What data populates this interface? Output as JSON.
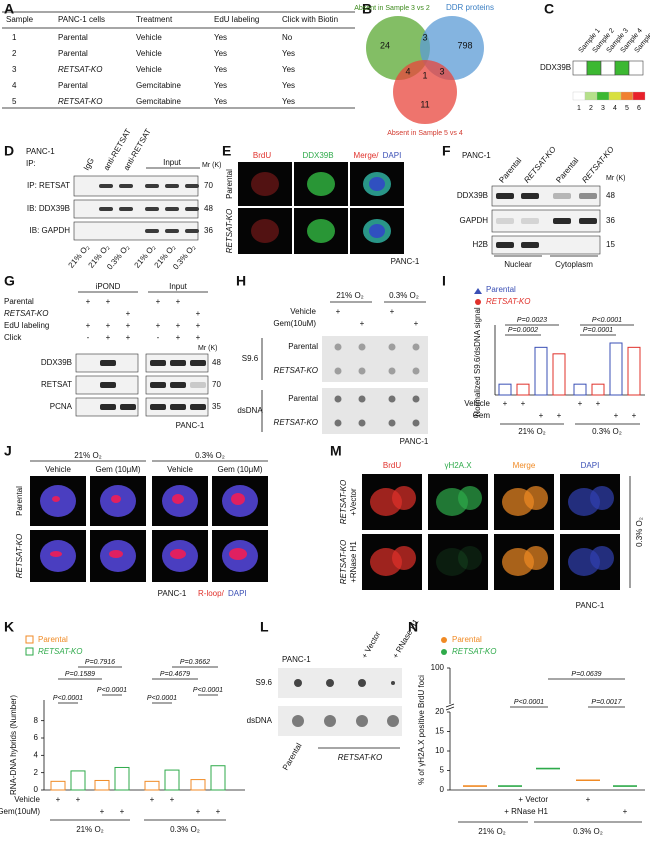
{
  "panel_a": {
    "label": "A",
    "table": {
      "header": [
        "Sample",
        "PANC-1 cells",
        "Treatment",
        "EdU labeling",
        "Click with Biotin"
      ],
      "rows": [
        [
          "1",
          "Parental",
          "Vehicle",
          "Yes",
          "No"
        ],
        [
          "2",
          "Parental",
          "Vehicle",
          "Yes",
          "Yes"
        ],
        [
          "3",
          "RETSAT-KO",
          "Vehicle",
          "Yes",
          "Yes"
        ],
        [
          "4",
          "Parental",
          "Gemcitabine",
          "Yes",
          "Yes"
        ],
        [
          "5",
          "RETSAT-KO",
          "Gemcitabine",
          "Yes",
          "Yes"
        ]
      ]
    }
  },
  "panel_b": {
    "label": "B",
    "sets": [
      "Absent in Sample 3 vs 2",
      "DDR proteins",
      "Absent in Sample 5 vs 4"
    ],
    "counts": [
      "24",
      "3",
      "798",
      "4",
      "1",
      "3",
      "11"
    ]
  },
  "panel_c": {
    "label": "C",
    "row": "DDX39B",
    "samples": [
      "Sample 1",
      "Sample 2",
      "Sample 3",
      "Sample 4",
      "Sample 5"
    ],
    "values": [
      1,
      3,
      1,
      3,
      1
    ],
    "scale": [
      "1",
      "2",
      "3",
      "4",
      "5",
      "6"
    ]
  },
  "panel_d": {
    "label": "D",
    "cells": "PANC-1",
    "ip": "IP:",
    "lanes": [
      "IgG",
      "anti-RETSAT",
      "anti-RETSAT"
    ],
    "input": "Input",
    "mr": "Mr (K)",
    "rows": [
      "IP: RETSAT",
      "IB: DDX39B",
      "IB: GAPDH"
    ],
    "mw": [
      "70",
      "48",
      "36"
    ],
    "oxygen": [
      "21% O₂",
      "21% O₂",
      "0.3% O₂",
      "21% O₂",
      "21% O₂",
      "0.3% O₂"
    ]
  },
  "panel_e": {
    "label": "E",
    "columns": [
      "BrdU",
      "DDX39B",
      "Merge/",
      "DAPI"
    ],
    "rows": [
      "Parental",
      "RETSAT-KO"
    ],
    "cells": "PANC-1"
  },
  "panel_f": {
    "label": "F",
    "cells": "PANC-1",
    "lanes": [
      "Parental",
      "RETSAT-KO",
      "Parental",
      "RETSAT-KO"
    ],
    "mr": "Mr (K)",
    "rows": [
      "DDX39B",
      "GAPDH",
      "H2B"
    ],
    "mw": [
      "48",
      "36",
      "15"
    ],
    "fractions": [
      "Nuclear",
      "Cytoplasm"
    ]
  },
  "panel_g": {
    "label": "G",
    "groups": [
      "iPOND",
      "Input"
    ],
    "conditions": [
      {
        "name": "Parental",
        "signs": [
          "+",
          "+",
          null,
          "+",
          "+",
          null
        ]
      },
      {
        "name": "RETSAT-KO",
        "signs": [
          null,
          null,
          "+",
          null,
          null,
          "+"
        ]
      },
      {
        "name": "EdU labeling",
        "signs": [
          "+",
          "+",
          "+",
          "+",
          "+",
          "+"
        ]
      },
      {
        "name": "Click",
        "signs": [
          "-",
          "+",
          "+",
          "-",
          "+",
          "+"
        ]
      }
    ],
    "mr": "Mr (K)",
    "rows": [
      "DDX39B",
      "RETSAT",
      "PCNA"
    ],
    "mw": [
      "48",
      "70",
      "35"
    ],
    "cells": "PANC-1"
  },
  "panel_h": {
    "label": "H",
    "groups": [
      "21% O₂",
      "0.3% O₂"
    ],
    "conditions": [
      {
        "name": "Vehicle",
        "signs": [
          "+",
          null,
          "+",
          null
        ]
      },
      {
        "name": "Gem(10uM)",
        "signs": [
          null,
          "+",
          null,
          "+"
        ]
      }
    ],
    "blots": [
      "S9.6",
      "dsDNA"
    ],
    "lines": [
      "Parental",
      "RETSAT-KO"
    ],
    "cells": "PANC-1"
  },
  "panel_i": {
    "label": "I",
    "type": "bar",
    "ylabel": "Normalized S9.6/dsDNA signal",
    "ylim": [
      0,
      1.5
    ],
    "series": [
      {
        "name": "Parental",
        "color": "#3a4fb5",
        "values": [
          0.25,
          1.1,
          0.25,
          1.2
        ]
      },
      {
        "name": "RETSAT-KO",
        "color": "#e0302a",
        "values": [
          0.25,
          0.95,
          0.25,
          1.1
        ]
      }
    ],
    "pvalues": [
      "P=0.0023",
      "P=0.0002",
      "P<0.0001",
      "P=0.0001"
    ],
    "conditions": [
      {
        "name": "Vehicle",
        "signs": [
          "+",
          "+",
          null,
          null,
          "+",
          "+",
          null,
          null
        ]
      },
      {
        "name": "Gem",
        "signs": [
          null,
          null,
          "+",
          "+",
          null,
          null,
          "+",
          "+"
        ]
      }
    ],
    "groups": [
      "21% O₂",
      "0.3% O₂"
    ]
  },
  "panel_j": {
    "label": "J",
    "groups": [
      "21% O₂",
      "0.3% O₂"
    ],
    "columns": [
      "Vehicle",
      "Gem (10μM)",
      "Vehicle",
      "Gem (10μM)"
    ],
    "rows": [
      "Parental",
      "RETSAT-KO"
    ],
    "cells": "PANC-1",
    "stain": [
      "R-loop/",
      "DAPI"
    ]
  },
  "panel_k": {
    "label": "K",
    "type": "bar",
    "ylabel": "RNA-DNA hybrids (Number)",
    "ylim": [
      0,
      9
    ],
    "yticks": [
      0,
      2,
      4,
      6,
      8
    ],
    "series": [
      {
        "name": "Parental",
        "color": "#f08a24",
        "values": [
          1.0,
          1.1,
          1.0,
          1.2
        ]
      },
      {
        "name": "RETSAT-KO",
        "color": "#2eaa4a",
        "values": [
          2.2,
          2.6,
          2.3,
          2.8
        ]
      }
    ],
    "pvalues": [
      "P<0.0001",
      "P=0.1589",
      "P=0.7916",
      "P<0.0001",
      "P<0.0001",
      "P=0.4679",
      "P=0.3662",
      "P<0.0001"
    ],
    "conditions": [
      {
        "name": "Vehicle",
        "signs": [
          "+",
          "+",
          null,
          null,
          "+",
          "+",
          null,
          null
        ]
      },
      {
        "name": "Gem(10uM)",
        "signs": [
          null,
          null,
          "+",
          "+",
          null,
          null,
          "+",
          "+"
        ]
      }
    ],
    "groups": [
      "21% O₂",
      "0.3% O₂"
    ]
  },
  "panel_l": {
    "label": "L",
    "cells": "PANC-1",
    "treatments": [
      "+ Vector",
      "+ RNase H1"
    ],
    "rows": [
      "S9.6",
      "dsDNA"
    ],
    "lanes": [
      "Parental",
      "RETSAT-KO"
    ]
  },
  "panel_m": {
    "label": "M",
    "columns": [
      "BrdU",
      "γH2A.X",
      "Merge",
      "DAPI"
    ],
    "rows": [
      {
        "line": "RETSAT-KO",
        "treatment": "+Vector"
      },
      {
        "line": "RETSAT-KO",
        "treatment": "+RNase H1"
      }
    ],
    "oxygen": "0.3% O₂",
    "cells": "PANC-1"
  },
  "panel_n": {
    "label": "N",
    "type": "scatter",
    "ylabel": "% of γH2A.X positive BrdU foci",
    "ylim": [
      0,
      100
    ],
    "yticks": [
      0,
      5,
      10,
      15,
      20,
      100
    ],
    "series": [
      {
        "name": "Parental",
        "color": "#f08a24"
      },
      {
        "name": "RETSAT-KO",
        "color": "#2eaa4a"
      }
    ],
    "means": [
      1,
      1,
      5.5,
      2.5,
      1
    ],
    "pvalues": [
      "P=0.0639",
      "P<0.0001",
      "P=0.0017"
    ],
    "conditions": [
      {
        "name": "+ Vector",
        "signs": [
          null,
          null,
          null,
          "+",
          null
        ]
      },
      {
        "name": "+ RNase H1",
        "signs": [
          null,
          null,
          null,
          null,
          "+"
        ]
      }
    ],
    "groups": [
      "21% O₂",
      "0.3% O₂"
    ]
  }
}
